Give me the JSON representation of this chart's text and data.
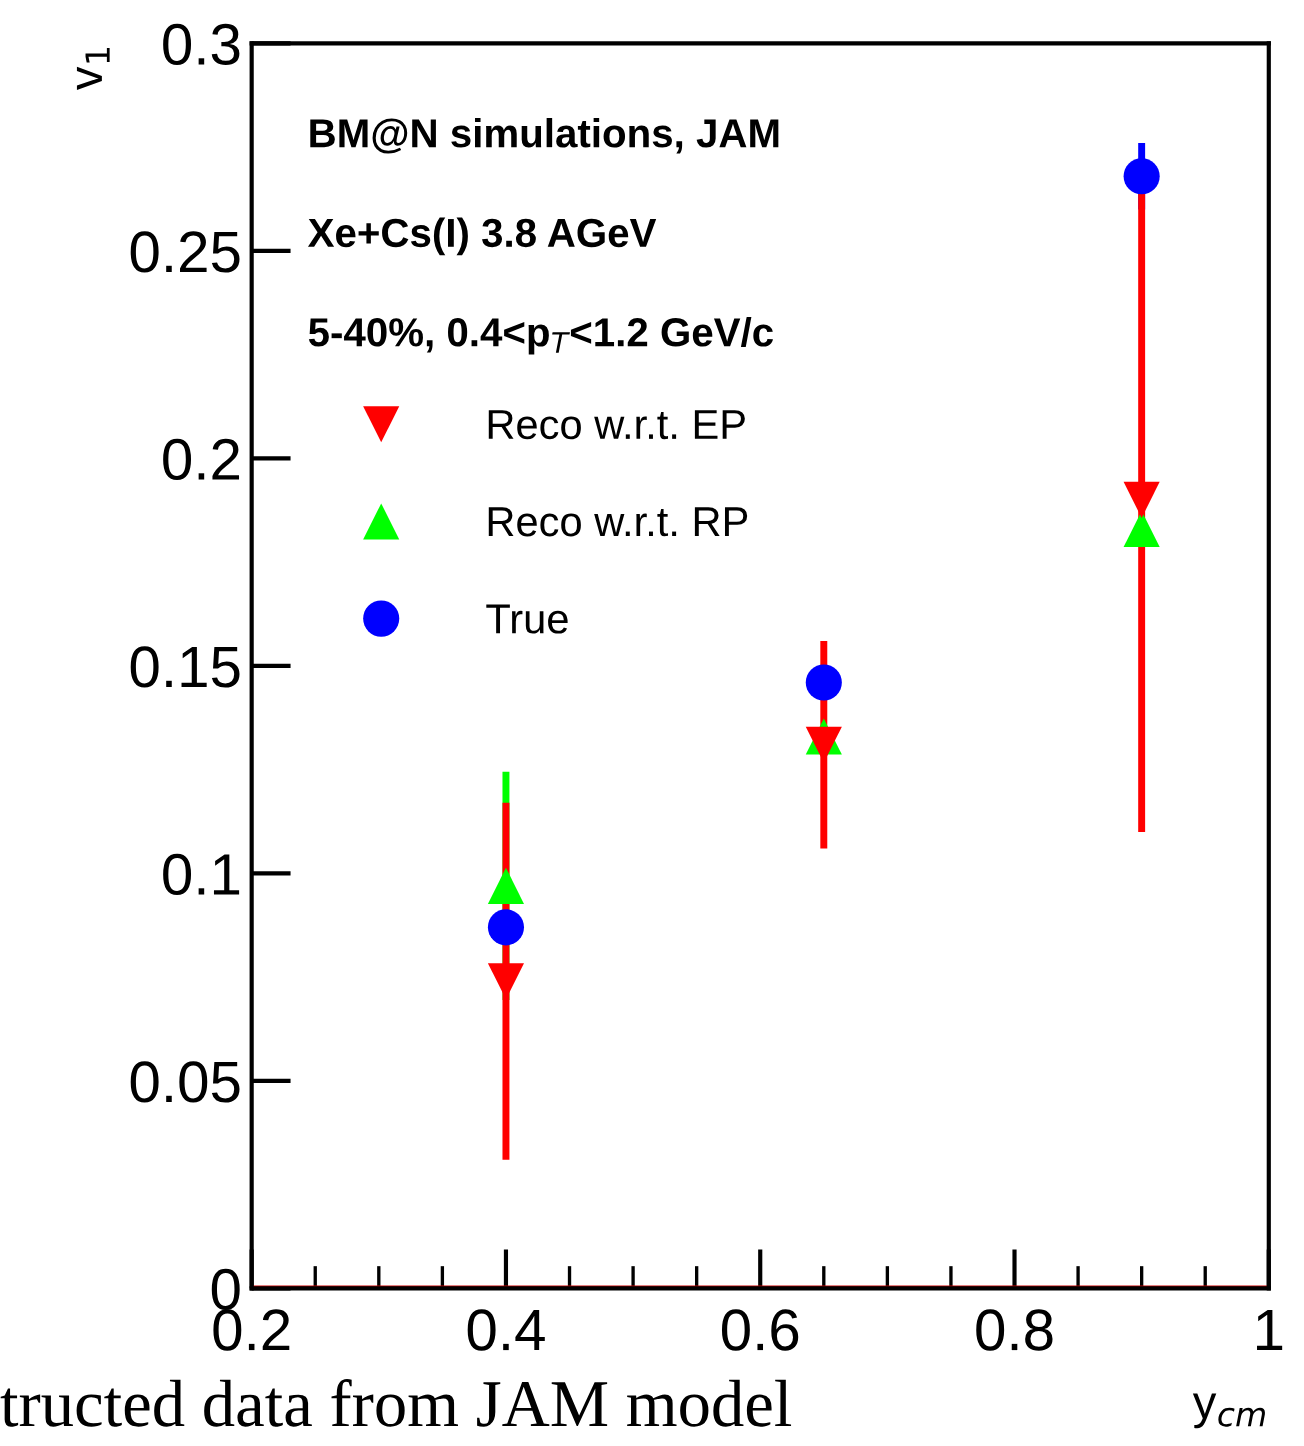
{
  "chart_data": {
    "type": "scatter",
    "xlabel": "y$_{cm}$",
    "ylabel": "v$_{1}$",
    "x": [
      0.4,
      0.65,
      0.9
    ],
    "series": [
      {
        "name": "Reco w.r.t. EP",
        "color": "#ff0000",
        "marker": "triangle_down",
        "values": [
          0.074,
          0.131,
          0.19
        ],
        "errors": [
          0.043,
          0.025,
          0.08
        ]
      },
      {
        "name": "Reco w.r.t. RP",
        "color": "#00ff00",
        "marker": "triangle",
        "values": [
          0.097,
          0.133,
          0.183
        ],
        "errors": [
          0.0275,
          null,
          null
        ]
      },
      {
        "name": "True",
        "color": "#0000ff",
        "marker": "circle",
        "values": [
          0.087,
          0.146,
          0.268
        ],
        "errors": [
          null,
          null,
          0.008
        ]
      }
    ],
    "xlim": [
      0.2,
      1.0
    ],
    "xticks": [
      0.2,
      0.4,
      0.6,
      0.8,
      {
        "value": 1.0,
        "label": "1"
      }
    ],
    "ylim": [
      0,
      0.3
    ],
    "yticks": [
      0,
      0.05,
      0.1,
      0.15,
      0.2,
      0.25,
      0.3
    ],
    "ref_lines": [
      {
        "axis": "y",
        "value": 0,
        "color": "#cc0000"
      }
    ],
    "annotations": [
      "BM@N simulations, JAM",
      "Xe+Cs(I) 3.8 AGeV",
      "5-40%, 0.4<p$_{T}$<1.2 GeV/c",
      "tructed data from JAM model"
    ],
    "legend": "top left",
    "grid": false
  }
}
